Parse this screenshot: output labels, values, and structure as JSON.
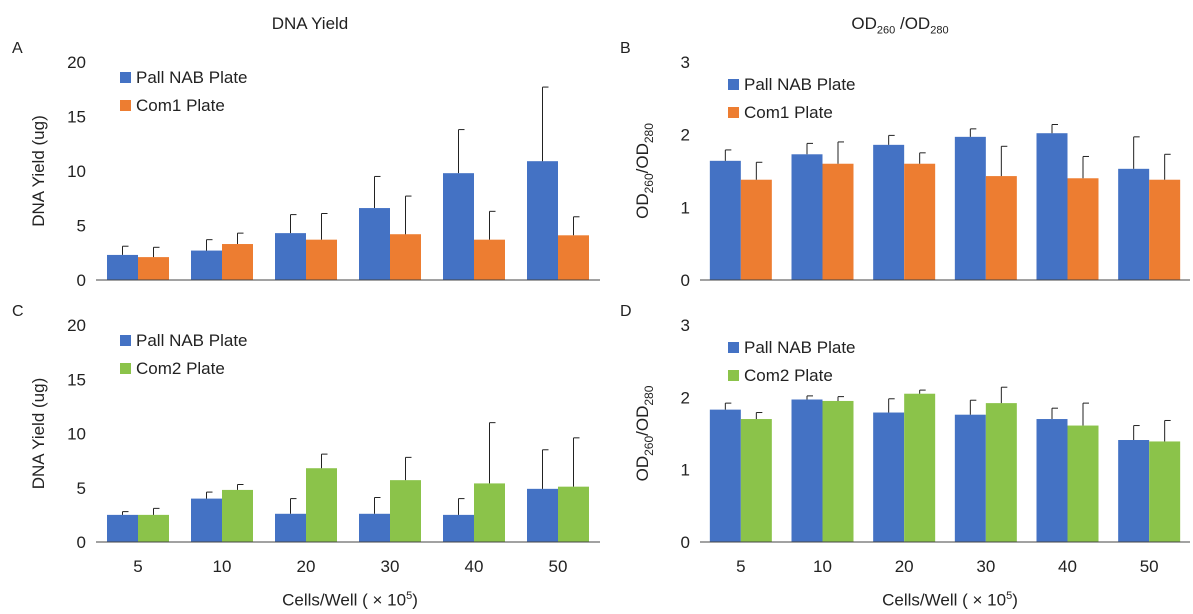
{
  "columns": {
    "left": {
      "title": "DNA Yield"
    },
    "right": {
      "title_main": "OD",
      "title_sub1": "260",
      "title_sep": " /OD",
      "title_sub2": "280"
    }
  },
  "xaxis": {
    "label": "Cells/Well (  × 10",
    "label_sup": "5",
    "label_close": ")"
  },
  "colors": {
    "pall": "#4472C4",
    "com1": "#ED7D31",
    "com2": "#8BC34A"
  },
  "chart_data": [
    {
      "panel": "A",
      "type": "bar",
      "categories": [
        "5",
        "10",
        "20",
        "30",
        "40",
        "50"
      ],
      "ylabel": "DNA Yield (ug)",
      "ylim": [
        0,
        20
      ],
      "yticks": [
        0,
        5,
        10,
        15,
        20
      ],
      "legend_position": "top-left",
      "series": [
        {
          "name": "Pall NAB Plate",
          "color": "#4472C4",
          "values": [
            2.3,
            2.7,
            4.3,
            6.6,
            9.8,
            10.9
          ],
          "errors": [
            0.8,
            1.0,
            1.7,
            2.9,
            4.0,
            6.8
          ]
        },
        {
          "name": "Com1 Plate",
          "color": "#ED7D31",
          "values": [
            2.1,
            3.3,
            3.7,
            4.2,
            3.7,
            4.1
          ],
          "errors": [
            0.9,
            1.0,
            2.4,
            3.5,
            2.6,
            1.7
          ]
        }
      ]
    },
    {
      "panel": "B",
      "type": "bar",
      "categories": [
        "5",
        "10",
        "20",
        "30",
        "40",
        "50"
      ],
      "ylabel": "OD260/OD280",
      "ylim": [
        0,
        3
      ],
      "yticks": [
        0,
        1,
        2,
        3
      ],
      "legend_position": "top-left",
      "series": [
        {
          "name": "Pall NAB Plate",
          "color": "#4472C4",
          "values": [
            1.64,
            1.73,
            1.86,
            1.97,
            2.02,
            1.53
          ],
          "errors": [
            0.15,
            0.15,
            0.13,
            0.11,
            0.12,
            0.44
          ]
        },
        {
          "name": "Com1 Plate",
          "color": "#ED7D31",
          "values": [
            1.38,
            1.6,
            1.6,
            1.43,
            1.4,
            1.38
          ],
          "errors": [
            0.24,
            0.3,
            0.15,
            0.41,
            0.3,
            0.35
          ]
        }
      ]
    },
    {
      "panel": "C",
      "type": "bar",
      "categories": [
        "5",
        "10",
        "20",
        "30",
        "40",
        "50"
      ],
      "ylabel": "DNA Yield (ug)",
      "ylim": [
        0,
        20
      ],
      "yticks": [
        0,
        5,
        10,
        15,
        20
      ],
      "legend_position": "top-left",
      "series": [
        {
          "name": "Pall NAB Plate",
          "color": "#4472C4",
          "values": [
            2.5,
            4.0,
            2.6,
            2.6,
            2.5,
            4.9
          ],
          "errors": [
            0.3,
            0.6,
            1.4,
            1.5,
            1.5,
            3.6
          ]
        },
        {
          "name": "Com2 Plate",
          "color": "#8BC34A",
          "values": [
            2.5,
            4.8,
            6.8,
            5.7,
            5.4,
            5.1
          ],
          "errors": [
            0.6,
            0.5,
            1.3,
            2.1,
            5.6,
            4.5
          ]
        }
      ]
    },
    {
      "panel": "D",
      "type": "bar",
      "categories": [
        "5",
        "10",
        "20",
        "30",
        "40",
        "50"
      ],
      "ylabel": "OD260/OD280",
      "ylim": [
        0,
        3
      ],
      "yticks": [
        0,
        1,
        2,
        3
      ],
      "legend_position": "top-left",
      "series": [
        {
          "name": "Pall NAB Plate",
          "color": "#4472C4",
          "values": [
            1.83,
            1.97,
            1.79,
            1.76,
            1.7,
            1.41
          ],
          "errors": [
            0.09,
            0.05,
            0.19,
            0.2,
            0.15,
            0.2
          ]
        },
        {
          "name": "Com2 Plate",
          "color": "#8BC34A",
          "values": [
            1.7,
            1.95,
            2.05,
            1.92,
            1.61,
            1.39
          ],
          "errors": [
            0.09,
            0.06,
            0.05,
            0.22,
            0.31,
            0.29
          ]
        }
      ]
    }
  ]
}
